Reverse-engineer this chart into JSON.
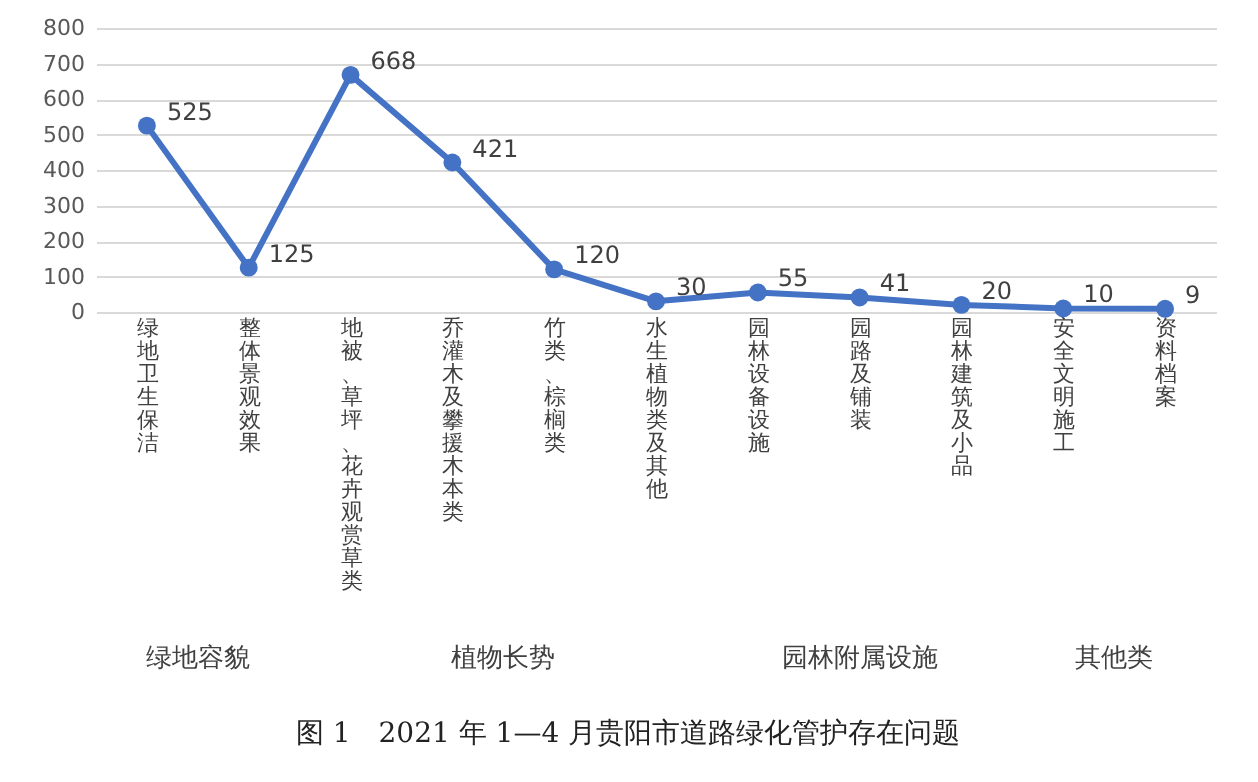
{
  "chart_data": {
    "type": "line",
    "title": "图 1　2021 年 1—4 月贵阳市道路绿化管护存在问题",
    "categories": [
      "绿地卫生保洁",
      "整体景观效果",
      "地被、草坪、花卉观赏草类",
      "乔灌木及攀援木本类",
      "竹类、棕榈类",
      "水生植物类及其他",
      "园林设备设施",
      "园路及铺装",
      "园林建筑及小品",
      "安全文明施工",
      "资料档案"
    ],
    "series": [
      {
        "color": "#4472c4",
        "values": [
          525,
          125,
          668,
          421,
          120,
          30,
          55,
          41,
          20,
          10,
          9
        ]
      }
    ],
    "ylim": [
      0,
      800
    ],
    "yticks": [
      0,
      100,
      200,
      300,
      400,
      500,
      600,
      700,
      800
    ],
    "grid": "y",
    "marker": "circle",
    "data_labels": true,
    "annotations": [
      "绿地容貌",
      "植物长势",
      "园林附属设施",
      "其他类"
    ]
  }
}
